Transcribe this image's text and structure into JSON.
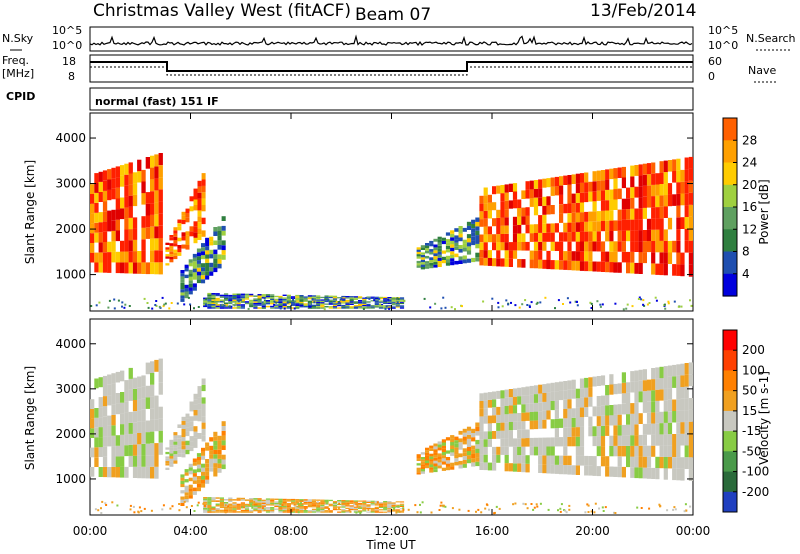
{
  "header": {
    "station": "Christmas Valley West (fitACF)",
    "beam": "Beam 07",
    "date": "13/Feb/2014"
  },
  "sky_panel": {
    "left_label": "N.Sky",
    "right_label": "N.Search",
    "left_ticks": [
      "10^5",
      "10^0"
    ],
    "right_ticks": [
      "10^5",
      "10^0"
    ]
  },
  "freq_panel": {
    "left_label_line1": "Freq.",
    "left_label_line2": "[MHz]",
    "right_label": "Nave",
    "left_ticks": [
      "18",
      "8"
    ],
    "right_ticks": [
      "60",
      "0"
    ]
  },
  "cpid": {
    "label": "CPID",
    "value": "normal (fast) 151 IF"
  },
  "colors": {
    "power": [
      "#0000dd",
      "#1f4fb0",
      "#2f7f3f",
      "#5fa060",
      "#9fd040",
      "#ffcc00",
      "#ffa000",
      "#ff6000",
      "#ff2000",
      "#e00000"
    ],
    "velocity": [
      "#2040c0",
      "#2a6a3a",
      "#4a9a4a",
      "#88cc44",
      "#c8c8c0",
      "#f0a020",
      "#ff8000",
      "#ff4000",
      "#ff0000"
    ]
  },
  "chart_data": [
    {
      "type": "heatmap",
      "name": "power",
      "ylabel": "Slant Range [km]",
      "yticks": [
        1000,
        2000,
        3000,
        4000
      ],
      "ylim": [
        200,
        4550
      ],
      "colorbar_label": "Power [dB]",
      "colorbar_ticks": [
        "28",
        "24",
        "20",
        "16",
        "12",
        "8",
        "4"
      ],
      "colorbar_range": [
        0,
        30
      ],
      "regions": [
        {
          "t0": 0.0,
          "t1": 2.9,
          "r_lo": [
            1050,
            1000
          ],
          "r_hi": [
            3200,
            3700
          ],
          "palette": "strong"
        },
        {
          "t0": 3.0,
          "t1": 4.6,
          "r_lo": [
            1200,
            1900
          ],
          "r_hi": [
            1700,
            3400
          ],
          "palette": "strong"
        },
        {
          "t0": 3.6,
          "t1": 5.4,
          "r_lo": [
            400,
            1300
          ],
          "r_hi": [
            1100,
            2400
          ],
          "palette": "weak"
        },
        {
          "t0": 4.5,
          "t1": 12.5,
          "r_lo": [
            250,
            250
          ],
          "r_hi": [
            600,
            500
          ],
          "palette": "weak"
        },
        {
          "t0": 13.0,
          "t1": 15.5,
          "r_lo": [
            1100,
            1300
          ],
          "r_hi": [
            1600,
            2300
          ],
          "palette": "weak"
        },
        {
          "t0": 15.5,
          "t1": 24.0,
          "r_lo": [
            1200,
            950
          ],
          "r_hi": [
            2900,
            3600
          ],
          "palette": "strong"
        }
      ]
    },
    {
      "type": "heatmap",
      "name": "velocity",
      "ylabel": "Slant Range [km]",
      "yticks": [
        1000,
        2000,
        3000,
        4000
      ],
      "ylim": [
        200,
        4550
      ],
      "xlabel": "Time UT",
      "xticks": [
        "00:00",
        "04:00",
        "08:00",
        "12:00",
        "16:00",
        "20:00",
        "00:00"
      ],
      "xlim": [
        0,
        24
      ],
      "colorbar_label": "Velocity [m s-1]",
      "colorbar_ticks": [
        "200",
        "100",
        "50",
        "15",
        "-15",
        "-50",
        "-100",
        "-200"
      ],
      "colorbar_range": [
        -250,
        250
      ],
      "regions": [
        {
          "t0": 0.0,
          "t1": 2.9,
          "r_lo": [
            1050,
            1000
          ],
          "r_hi": [
            3200,
            3700
          ],
          "palette": "grey"
        },
        {
          "t0": 3.0,
          "t1": 4.6,
          "r_lo": [
            1200,
            1900
          ],
          "r_hi": [
            1700,
            3400
          ],
          "palette": "grey"
        },
        {
          "t0": 3.6,
          "t1": 5.4,
          "r_lo": [
            400,
            1300
          ],
          "r_hi": [
            1100,
            2400
          ],
          "palette": "orange"
        },
        {
          "t0": 4.5,
          "t1": 12.5,
          "r_lo": [
            250,
            250
          ],
          "r_hi": [
            600,
            500
          ],
          "palette": "orange"
        },
        {
          "t0": 13.0,
          "t1": 15.5,
          "r_lo": [
            1100,
            1300
          ],
          "r_hi": [
            1600,
            2300
          ],
          "palette": "orange"
        },
        {
          "t0": 15.5,
          "t1": 24.0,
          "r_lo": [
            1200,
            950
          ],
          "r_hi": [
            2900,
            3600
          ],
          "palette": "grey"
        }
      ]
    }
  ]
}
